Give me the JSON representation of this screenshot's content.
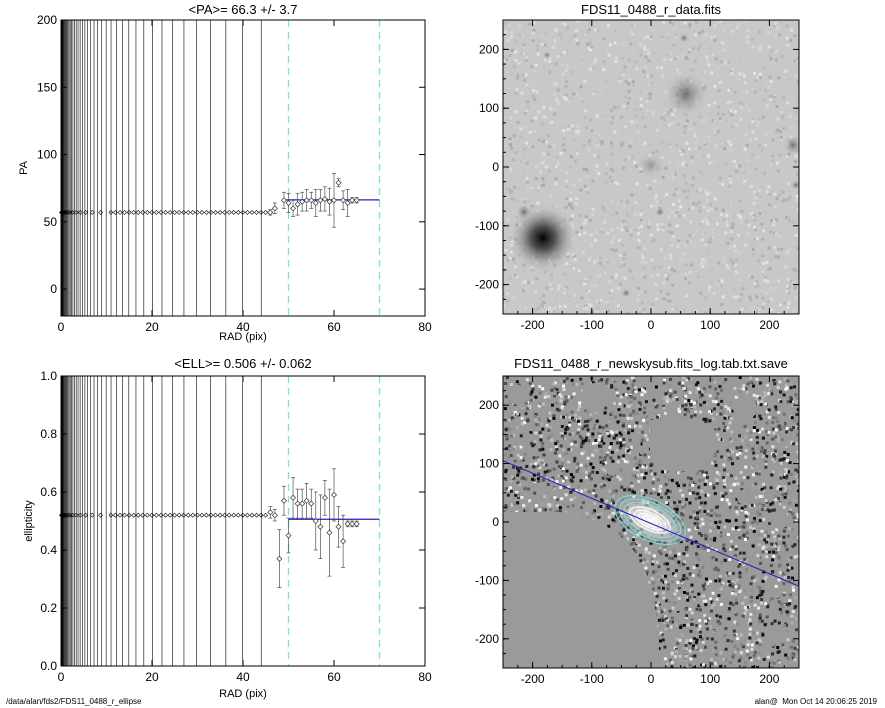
{
  "footer": {
    "path": "/data/alan/fds2/FDS11_0488_r_ellipse",
    "user": "alan@",
    "timestamp": "Mon Oct 14 20:06:25 2019"
  },
  "colors": {
    "fit_line": "#2020c0",
    "guide_line": "#7fe0e0",
    "vline": "#000000"
  },
  "chart_data": [
    {
      "id": "pa",
      "type": "scatter",
      "title": "<PA>=  66.3 +/-   3.7",
      "xlabel": "RAD (pix)",
      "ylabel": "PA",
      "xlim": [
        0,
        80
      ],
      "ylim": [
        -20,
        200
      ],
      "xticks": [
        0,
        20,
        40,
        60,
        80
      ],
      "yticks": [
        0,
        50,
        100,
        150,
        200
      ],
      "guides_x": [
        50,
        70
      ],
      "fit": {
        "x": [
          49,
          70
        ],
        "y": [
          66.3,
          66.3
        ]
      },
      "inner_points": {
        "x_start": 0.1,
        "x_end": 45,
        "y": 57
      },
      "outer": {
        "x": [
          46,
          47,
          49,
          50,
          51,
          52,
          53,
          54,
          55,
          56,
          57,
          58,
          59,
          60,
          61,
          62,
          63,
          64,
          65
        ],
        "y": [
          57,
          60,
          66,
          64,
          60,
          63,
          65,
          66,
          66,
          64,
          66,
          67,
          65,
          66,
          79,
          66,
          64,
          66,
          66
        ],
        "err": [
          2,
          4,
          6,
          7,
          6,
          8,
          7,
          8,
          6,
          10,
          8,
          9,
          10,
          20,
          3,
          7,
          10,
          2,
          2
        ]
      }
    },
    {
      "id": "ell",
      "type": "scatter",
      "title": "<ELL>= 0.506 +/-  0.062",
      "xlabel": "RAD (pix)",
      "ylabel": "ellipticity",
      "xlim": [
        0,
        80
      ],
      "ylim": [
        0,
        1
      ],
      "xticks": [
        0,
        20,
        40,
        60,
        80
      ],
      "yticks": [
        0.0,
        0.2,
        0.4,
        0.6,
        0.8,
        1.0
      ],
      "guides_x": [
        50,
        70
      ],
      "fit": {
        "x": [
          50,
          70
        ],
        "y": [
          0.506,
          0.506
        ]
      },
      "inner_points": {
        "x_start": 0.1,
        "x_end": 45,
        "y": 0.52
      },
      "outer": {
        "x": [
          46,
          47,
          48,
          49,
          50,
          51,
          52,
          53,
          54,
          55,
          56,
          57,
          58,
          59,
          60,
          61,
          62,
          63,
          64,
          65
        ],
        "y": [
          0.53,
          0.52,
          0.37,
          0.57,
          0.45,
          0.58,
          0.56,
          0.56,
          0.57,
          0.56,
          0.5,
          0.48,
          0.58,
          0.46,
          0.59,
          0.48,
          0.43,
          0.49,
          0.49,
          0.49
        ],
        "err": [
          0.02,
          0.02,
          0.1,
          0.05,
          0.06,
          0.07,
          0.05,
          0.05,
          0.06,
          0.05,
          0.1,
          0.11,
          0.06,
          0.15,
          0.09,
          0.07,
          0.09,
          0.01,
          0.01,
          0.01
        ]
      }
    },
    {
      "id": "img1",
      "type": "heatmap",
      "title": "FDS11_0488_r_data.fits",
      "xlim": [
        -250,
        250
      ],
      "ylim": [
        -250,
        250
      ],
      "xticks": [
        -200,
        -100,
        0,
        100,
        200
      ],
      "yticks": [
        -200,
        -100,
        0,
        100,
        200
      ],
      "colormap": "grayscale-inverted"
    },
    {
      "id": "img2",
      "type": "heatmap",
      "title": "FDS11_0488_r_newskysub.fits_log.tab.txt.save",
      "xlim": [
        -250,
        250
      ],
      "ylim": [
        -250,
        250
      ],
      "xticks": [
        -200,
        -100,
        0,
        100,
        200
      ],
      "yticks": [
        -200,
        -100,
        0,
        100,
        200
      ],
      "colormap": "grayscale",
      "major_axis_line": {
        "x": [
          -250,
          250
        ],
        "y": [
          105,
          -110
        ]
      }
    }
  ]
}
